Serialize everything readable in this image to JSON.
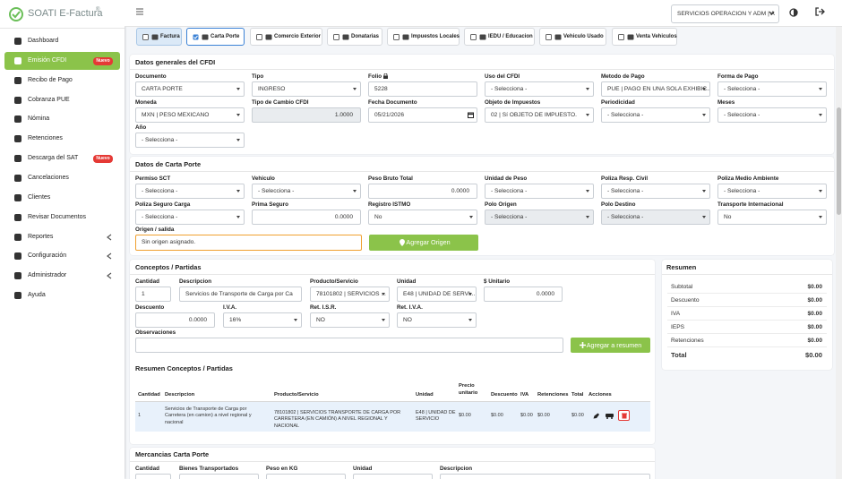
{
  "sidebar": {
    "brand": "SOATI E-Factura",
    "brand_mark": "®",
    "menu": [
      {
        "label": "Dashboard"
      },
      {
        "label": "Emisión CFDI",
        "badge": "Nuevo"
      },
      {
        "label": "Recibo de Pago"
      },
      {
        "label": "Cobranza PUE"
      },
      {
        "label": "Nómina"
      },
      {
        "label": "Retenciones"
      },
      {
        "label": "Descarga del SAT",
        "badge": "Nuevo"
      },
      {
        "label": "Cancelaciones"
      },
      {
        "label": "Clientes"
      },
      {
        "label": "Revisar Documentos"
      },
      {
        "label": "Reportes"
      },
      {
        "label": "Configuración"
      },
      {
        "label": "Administrador"
      },
      {
        "label": "Ayuda"
      }
    ]
  },
  "topbar": {
    "company": "SERVICIOS OPERACION Y ADM | A"
  },
  "tabs": [
    "Factura",
    "Carta Porte",
    "Comercio Exterior",
    "Donatarias",
    "Impuestos Locales",
    "IEDU / Educacion",
    "Vehiculo Usado",
    "Venta Vehiculos"
  ],
  "general": {
    "title": "Datos generales del CFDI",
    "fields": [
      {
        "label": "Documento",
        "value": "CARTA PORTE"
      },
      {
        "label": "Tipo",
        "value": "INGRESO"
      },
      {
        "label": "Folio",
        "value": "5228"
      },
      {
        "label": "Uso del CFDI",
        "value": "- Selecciona -"
      },
      {
        "label": "Metodo de Pago",
        "value": "PUE | PAGO EN UNA SOLA EXHIBIC..."
      },
      {
        "label": "Forma de Pago",
        "value": "- Selecciona -"
      },
      {
        "label": "Moneda",
        "value": "MXN | PESO MEXICANO"
      },
      {
        "label": "Tipo de Cambio CFDI",
        "value": "1.0000"
      },
      {
        "label": "Fecha Documento",
        "value": "05/21/2026"
      },
      {
        "label": "Objeto de Impuestos",
        "value": "02 | Sí OBJETO DE IMPUESTO."
      },
      {
        "label": "Periodicidad",
        "value": "- Selecciona -"
      },
      {
        "label": "Meses",
        "value": "- Selecciona -"
      },
      {
        "label": "Año",
        "value": "- Selecciona -"
      }
    ]
  },
  "carta_porte": {
    "title": "Datos de Carta Porte",
    "fields": [
      {
        "label": "Permiso SCT",
        "value": "- Selecciona -"
      },
      {
        "label": "Vehiculo",
        "value": "- Selecciona -"
      },
      {
        "label": "Peso Bruto Total",
        "value": "0.0000"
      },
      {
        "label": "Unidad de Peso",
        "value": "- Selecciona -"
      },
      {
        "label": "Poliza Resp. Civil",
        "value": "- Selecciona -"
      },
      {
        "label": "Poliza Medio Ambiente",
        "value": "- Selecciona -"
      },
      {
        "label": "Poliza Seguro Carga",
        "value": "- Selecciona -"
      },
      {
        "label": "Prima Seguro",
        "value": "0.0000"
      },
      {
        "label": "Registro ISTMO",
        "value": "No"
      },
      {
        "label": "Polo Origen",
        "value": "- Selecciona -"
      },
      {
        "label": "Polo Destino",
        "value": "- Selecciona -"
      },
      {
        "label": "Transporte Internacional",
        "value": "No"
      }
    ],
    "origin": {
      "label": "Origen / salida",
      "value": "Sin origen asignado.",
      "button": "Agregar Origen"
    }
  },
  "conceptos": {
    "title": "Conceptos / Partidas",
    "fields": [
      {
        "label": "Cantidad",
        "value": "1"
      },
      {
        "label": "Descripcion",
        "value": "Servicios de Transporte de Carga por Ca"
      },
      {
        "label": "Producto/Servicio",
        "value": "78101802 | SERVICIOS ..."
      },
      {
        "label": "Unidad",
        "value": "E48 | UNIDAD DE SERVI..."
      },
      {
        "label": "$ Unitario",
        "value": "0.0000"
      },
      {
        "label": "Descuento",
        "value": "0.0000"
      },
      {
        "label": "I.V.A.",
        "value": "16%"
      },
      {
        "label": "Ret. I.S.R.",
        "value": "NO"
      },
      {
        "label": "Ret. I.V.A.",
        "value": "NO"
      }
    ],
    "observaciones": "Observaciones",
    "button": "Agregar a resumen"
  },
  "resumen_conceptos": {
    "title": "Resumen Conceptos / Partidas",
    "columns": [
      "Cantidad",
      "Descripcion",
      "Producto/Servicio",
      "Unidad",
      "Precio unitario",
      "Descuento",
      "IVA",
      "Retenciones",
      "Total",
      "Acciones"
    ],
    "rows": [
      [
        "1",
        "Servicios de Transporte de Carga por Carretera (en camion) a nivel regional y nacional",
        "78101802 | SERVICIOS TRANSPORTE DE CARGA POR CARRETERA (EN CAMIÓN) A NIVEL REGIONAL Y NACIONAL",
        "E48 | UNIDAD DE SERVICIO",
        "$0.00",
        "$0.00",
        "$0.00",
        "$0.00",
        "$0.00"
      ]
    ]
  },
  "mercancias": {
    "title": "Mercancias Carta Porte",
    "columns": [
      "Cantidad",
      "Bienes Transportados",
      "Peso en KG",
      "Unidad",
      "Descripcion"
    ]
  },
  "resumen": {
    "title": "Resumen",
    "rows": [
      {
        "label": "Subtotal",
        "value": "$0.00"
      },
      {
        "label": "Descuento",
        "value": "$0.00"
      },
      {
        "label": "IVA",
        "value": "$0.00"
      },
      {
        "label": "IEPS",
        "value": "$0.00"
      },
      {
        "label": "Retenciones",
        "value": "$0.00"
      },
      {
        "label": "Total",
        "value": "$0.00"
      }
    ]
  }
}
